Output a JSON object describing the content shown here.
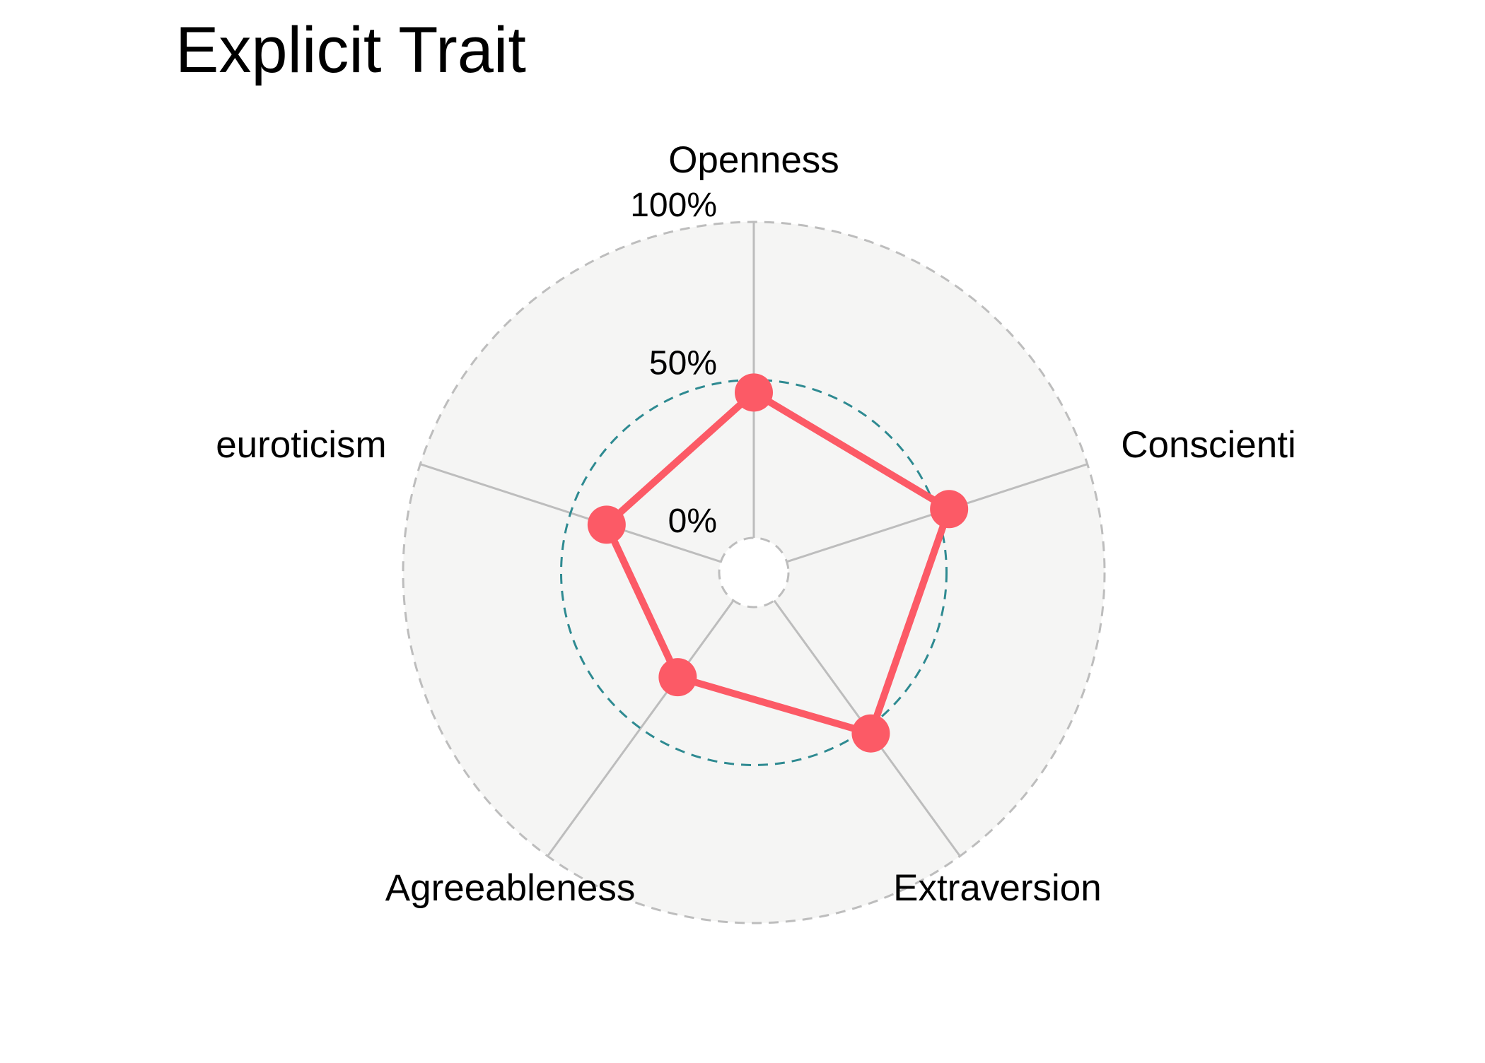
{
  "chart_data": {
    "type": "radar",
    "title": "Explicit Trait",
    "axes": [
      "Openness",
      "Conscienti",
      "Extraversion",
      "Agreeableness",
      "euroticism"
    ],
    "series": [
      {
        "values": [
          0.46,
          0.54,
          0.52,
          0.3,
          0.38
        ]
      }
    ],
    "radial_range": [
      0,
      1
    ],
    "radial_ticks": [
      {
        "value": 0,
        "label": "0%"
      },
      {
        "value": 0.5,
        "label": "50%"
      },
      {
        "value": 1,
        "label": "100%"
      }
    ],
    "grid": true,
    "colors": {
      "series": "#fc5a66",
      "reference_ring": "#2e8a91",
      "grid": "#bdbdbd",
      "background": "#f5f5f4"
    }
  }
}
